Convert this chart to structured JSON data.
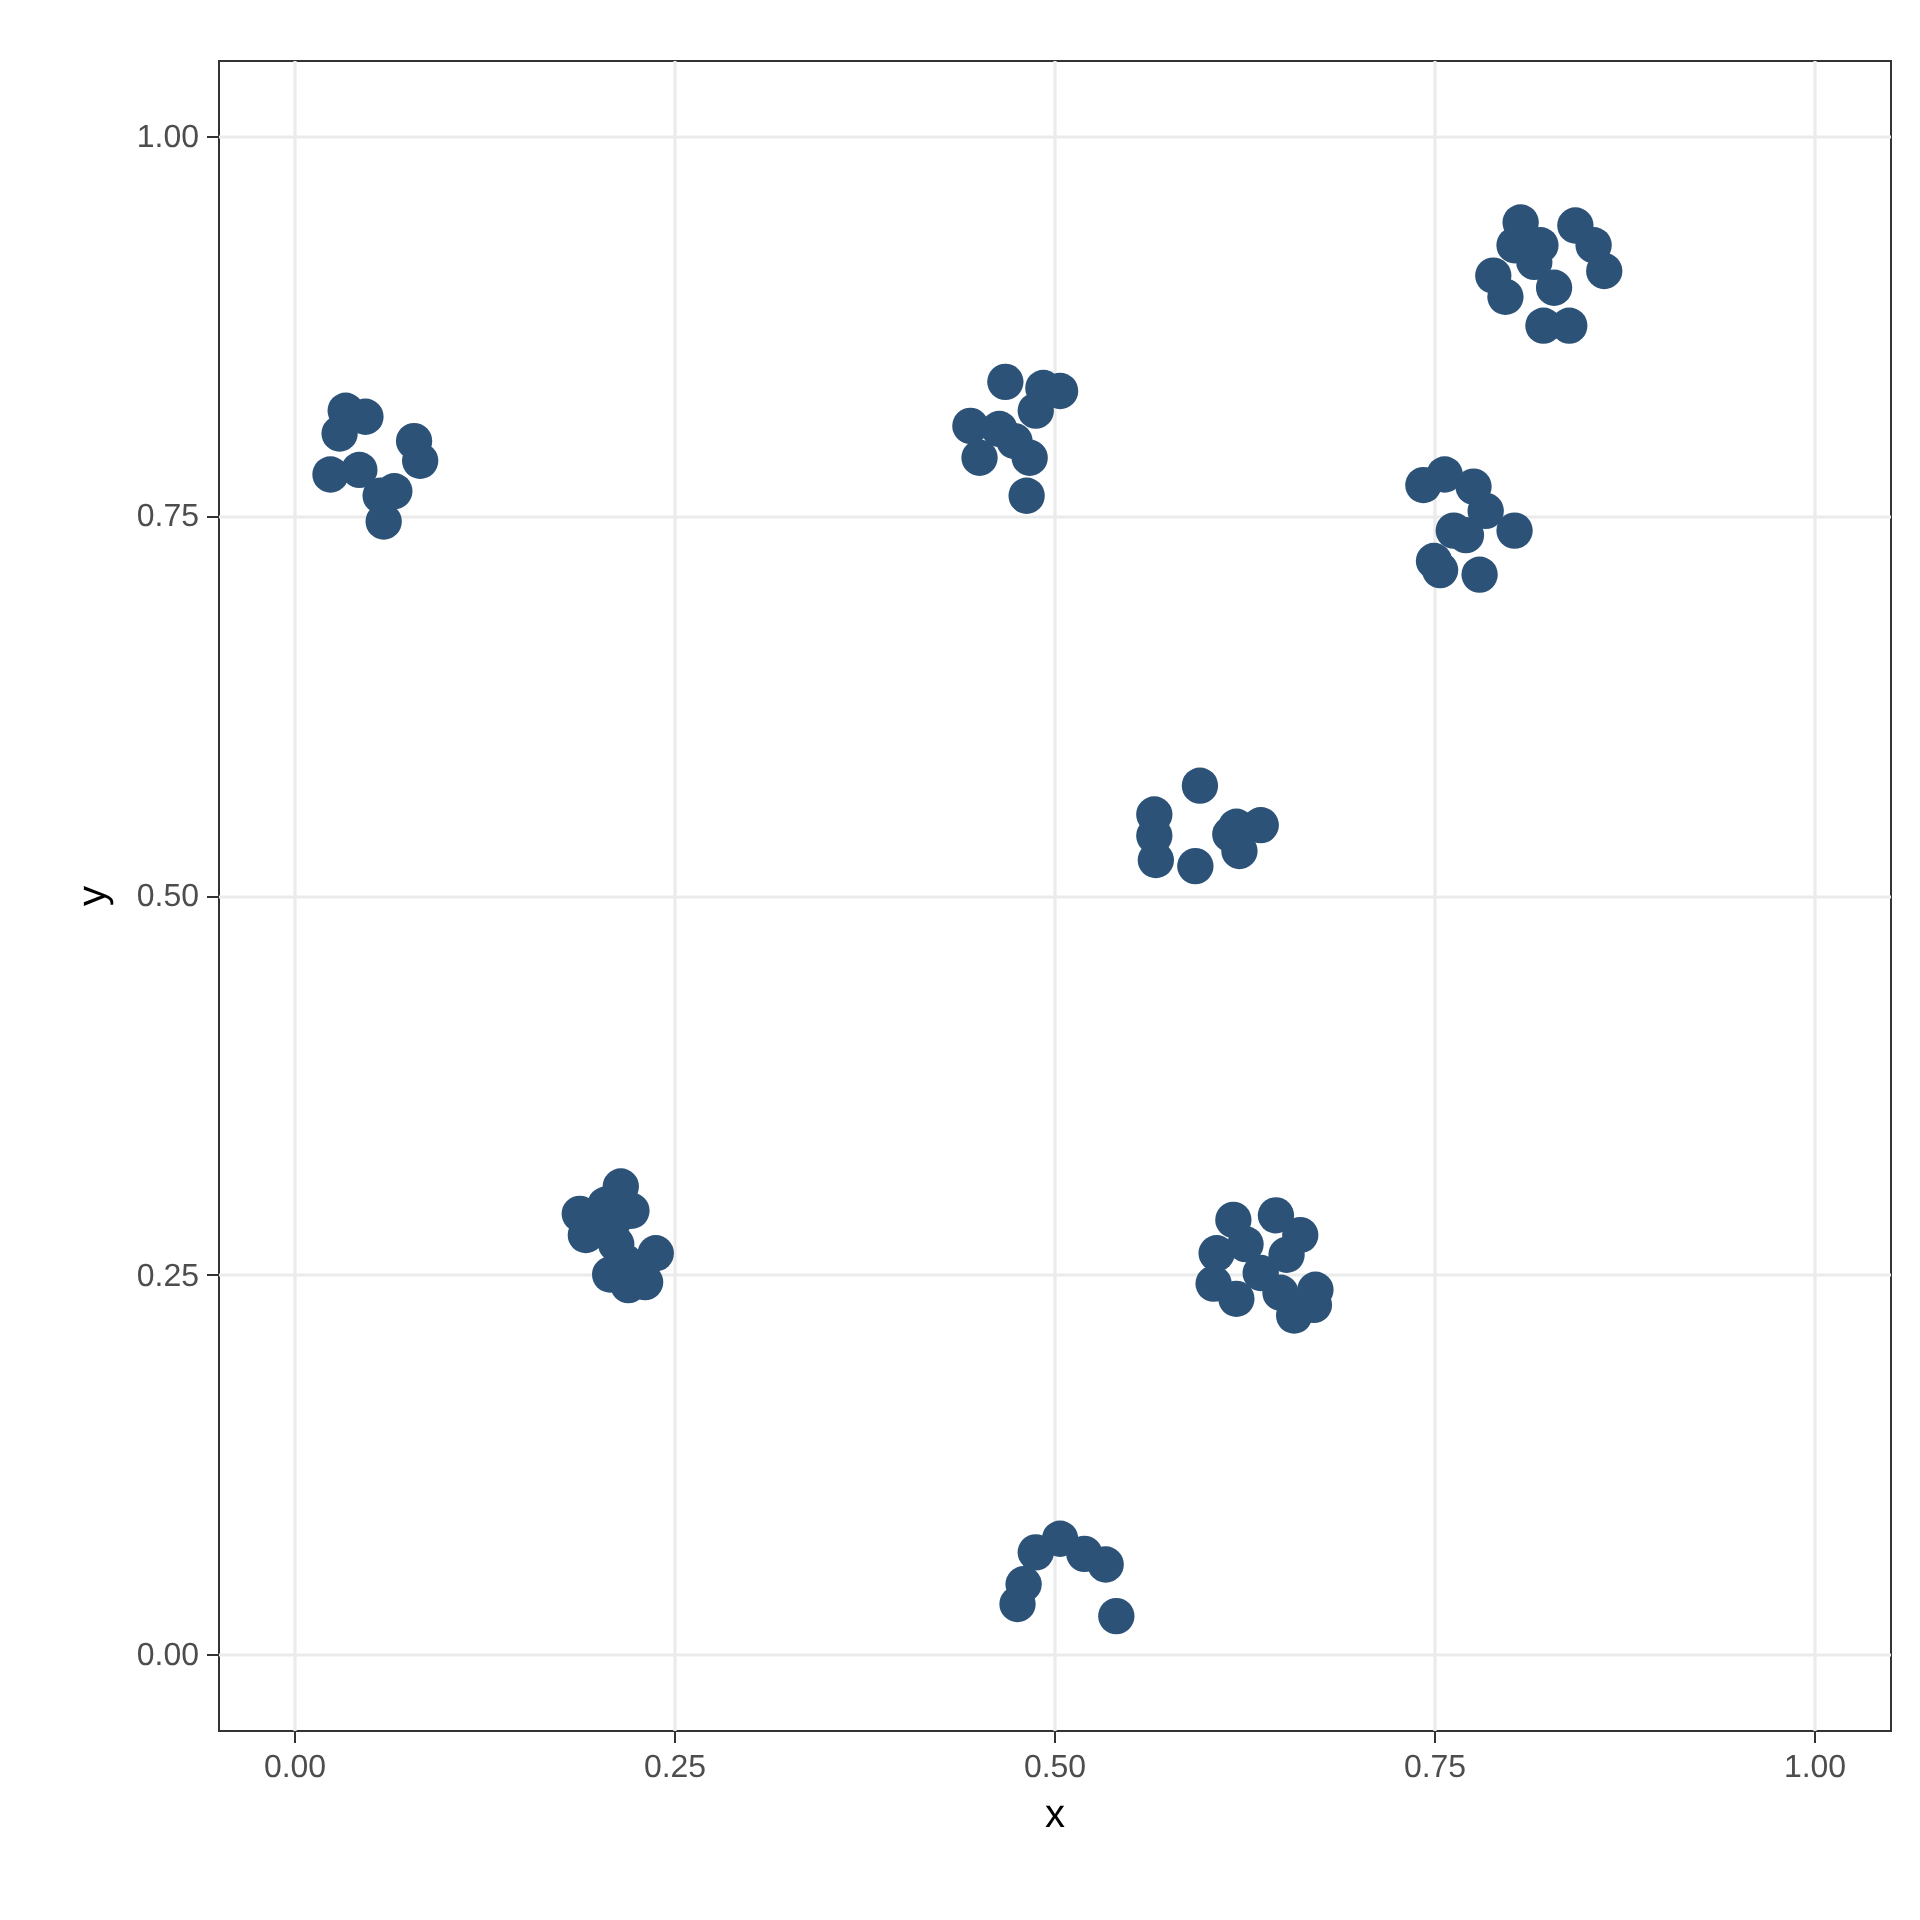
{
  "chart_data": {
    "type": "scatter",
    "xlabel": "x",
    "ylabel": "y",
    "xlim": [
      -0.05,
      1.05
    ],
    "ylim": [
      -0.05,
      1.05
    ],
    "xticks": [
      {
        "value": 0,
        "label": "0.00"
      },
      {
        "value": 0.25,
        "label": "0.25"
      },
      {
        "value": 0.5,
        "label": "0.50"
      },
      {
        "value": 0.75,
        "label": "0.75"
      },
      {
        "value": 1,
        "label": "1.00"
      }
    ],
    "yticks": [
      {
        "value": 0,
        "label": "0.00"
      },
      {
        "value": 0.25,
        "label": "0.25"
      },
      {
        "value": 0.5,
        "label": "0.50"
      },
      {
        "value": 0.75,
        "label": "0.75"
      },
      {
        "value": 1,
        "label": "1.00"
      }
    ],
    "grid": true,
    "marker": "circle",
    "series": [
      {
        "color": "#2c5278",
        "x": [
          0.034,
          0.047,
          0.03,
          0.079,
          0.083,
          0.024,
          0.057,
          0.059,
          0.066,
          0.043,
          0.468,
          0.493,
          0.504,
          0.445,
          0.464,
          0.488,
          0.451,
          0.484,
          0.482,
          0.474,
          0.807,
          0.843,
          0.803,
          0.82,
          0.855,
          0.789,
          0.797,
          0.816,
          0.829,
          0.862,
          0.822,
          0.839,
          0.743,
          0.757,
          0.776,
          0.784,
          0.763,
          0.803,
          0.75,
          0.754,
          0.78,
          0.771,
          0.596,
          0.566,
          0.566,
          0.567,
          0.593,
          0.62,
          0.636,
          0.622,
          0.616,
          0.618,
          0.646,
          0.662,
          0.607,
          0.605,
          0.62,
          0.636,
          0.653,
          0.649,
          0.658,
          0.672,
          0.671,
          0.626,
          0.488,
          0.504,
          0.52,
          0.534,
          0.48,
          0.476,
          0.541,
          0.188,
          0.192,
          0.205,
          0.215,
          0.21,
          0.222,
          0.208,
          0.218,
          0.22,
          0.231,
          0.238,
          0.212
        ],
        "values": [
          0.819,
          0.815,
          0.804,
          0.799,
          0.786,
          0.777,
          0.763,
          0.746,
          0.766,
          0.78,
          0.838,
          0.834,
          0.832,
          0.809,
          0.807,
          0.819,
          0.788,
          0.788,
          0.763,
          0.799,
          0.943,
          0.941,
          0.928,
          0.928,
          0.928,
          0.908,
          0.894,
          0.917,
          0.9,
          0.911,
          0.875,
          0.875,
          0.77,
          0.777,
          0.769,
          0.753,
          0.74,
          0.74,
          0.72,
          0.714,
          0.711,
          0.737,
          0.572,
          0.553,
          0.539,
          0.523,
          0.519,
          0.545,
          0.546,
          0.529,
          0.54,
          0.286,
          0.289,
          0.276,
          0.264,
          0.244,
          0.234,
          0.251,
          0.263,
          0.238,
          0.223,
          0.24,
          0.23,
          0.27,
          0.067,
          0.076,
          0.066,
          0.059,
          0.046,
          0.033,
          0.025,
          0.29,
          0.276,
          0.296,
          0.308,
          0.285,
          0.292,
          0.25,
          0.258,
          0.243,
          0.245,
          0.264,
          0.27
        ]
      }
    ]
  }
}
